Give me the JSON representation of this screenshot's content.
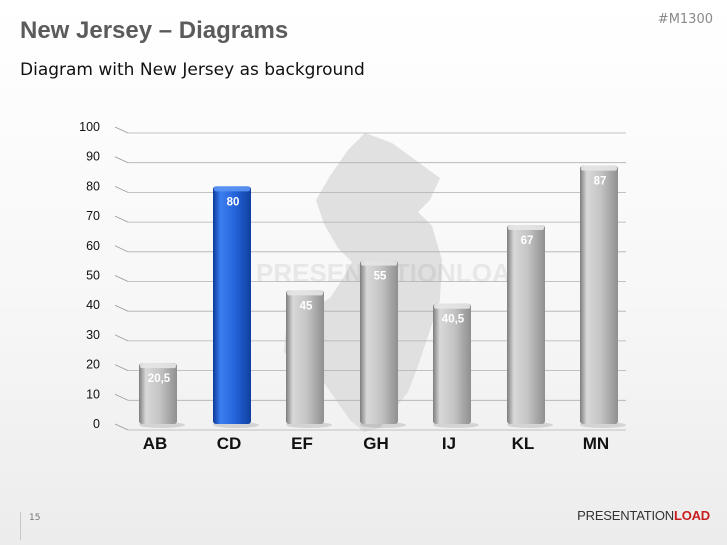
{
  "header": {
    "title": "New Jersey – Diagrams",
    "subtitle": "Diagram with New Jersey as background",
    "code": "#M1300"
  },
  "footer": {
    "page_number": "15",
    "brand_part1": "PRESENTATION",
    "brand_part2": "LOAD"
  },
  "watermark": "PRESENTATIONLOAD",
  "colors": {
    "highlight_bar": "#1f5fd6",
    "normal_bar": "#b8b8b8",
    "brand_red": "#c81e1e"
  },
  "chart_data": {
    "type": "bar",
    "categories": [
      "AB",
      "CD",
      "EF",
      "GH",
      "IJ",
      "KL",
      "MN"
    ],
    "values": [
      20.5,
      80,
      45,
      55,
      40.5,
      67,
      87
    ],
    "value_labels": [
      "20,5",
      "80",
      "45",
      "55",
      "40,5",
      "67",
      "87"
    ],
    "highlight": "CD",
    "ylim": [
      0,
      100
    ],
    "yticks": [
      0,
      10,
      20,
      30,
      40,
      50,
      60,
      70,
      80,
      90,
      100
    ],
    "grid": true,
    "legend": "none",
    "background_shape": "new-jersey-map"
  }
}
